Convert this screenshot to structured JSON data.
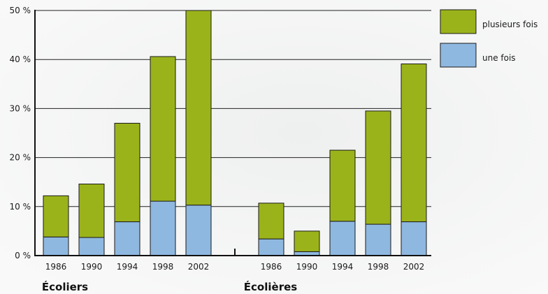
{
  "chart_data": {
    "type": "bar",
    "stacked": true,
    "title": "",
    "xlabel": "",
    "ylabel": "",
    "ylim": [
      0,
      50
    ],
    "yticks": [
      0,
      10,
      20,
      30,
      40,
      50
    ],
    "ytick_labels": [
      "0 %",
      "10 %",
      "20 %",
      "30 %",
      "40 %",
      "50 %"
    ],
    "grid": true,
    "legend_position": "top-right",
    "colors": {
      "une fois": "#8fb8e0",
      "plusieurs fois": "#9bb31a"
    },
    "groups": [
      {
        "label": "Écoliers",
        "categories": [
          "1986",
          "1990",
          "1994",
          "1998",
          "2002"
        ],
        "series": [
          {
            "name": "une fois",
            "values": [
              3.8,
              3.7,
              6.9,
              11.1,
              10.3
            ]
          },
          {
            "name": "plusieurs fois",
            "values": [
              8.4,
              10.9,
              20.1,
              29.5,
              39.7
            ]
          }
        ]
      },
      {
        "label": "Écolières",
        "categories": [
          "1986",
          "1990",
          "1994",
          "1998",
          "2002"
        ],
        "series": [
          {
            "name": "une fois",
            "values": [
              3.4,
              0.8,
              7.0,
              6.4,
              6.9
            ]
          },
          {
            "name": "plusieurs fois",
            "values": [
              7.3,
              4.2,
              14.5,
              23.1,
              32.2
            ]
          }
        ]
      }
    ],
    "legend": [
      {
        "name": "plusieurs fois"
      },
      {
        "name": "une fois"
      }
    ]
  }
}
